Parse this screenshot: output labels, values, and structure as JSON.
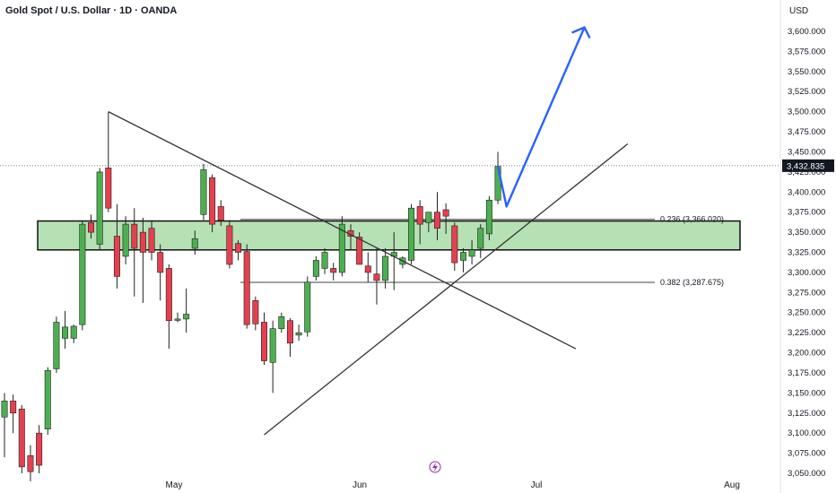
{
  "header": {
    "title": "Gold Spot / U.S. Dollar · 1D · OANDA",
    "currency": "USD"
  },
  "colors": {
    "up": "#4caf50",
    "down": "#e5404f",
    "zone_fill": "#a8dca8",
    "arrow": "#2962ff",
    "line": "#333333",
    "axis_text": "#131722",
    "price_badge_bg": "#131722"
  },
  "chart_data": {
    "type": "candlestick",
    "y_axis": {
      "ticks": [
        "3,050.000",
        "3,075.000",
        "3,100.000",
        "3,125.000",
        "3,150.000",
        "3,175.000",
        "3,200.000",
        "3,225.000",
        "3,250.000",
        "3,275.000",
        "3,300.000",
        "3,325.000",
        "3,350.000",
        "3,375.000",
        "3,400.000",
        "3,425.000",
        "3,450.000",
        "3,475.000",
        "3,500.000",
        "3,525.000",
        "3,550.000",
        "3,575.000",
        "3,600.000"
      ],
      "min": 3050,
      "max": 3600
    },
    "x_axis": {
      "labels": [
        "May",
        "Jun",
        "Jul",
        "Aug"
      ]
    },
    "current_price": {
      "value": 3432.835,
      "label": "3,432.835"
    },
    "candles": [
      {
        "o": 3120,
        "h": 3150,
        "l": 3070,
        "c": 3140
      },
      {
        "o": 3140,
        "h": 3148,
        "l": 3100,
        "c": 3125
      },
      {
        "o": 3130,
        "h": 3135,
        "l": 3050,
        "c": 3058
      },
      {
        "o": 3072,
        "h": 3085,
        "l": 3040,
        "c": 3052
      },
      {
        "o": 3100,
        "h": 3110,
        "l": 3050,
        "c": 3060
      },
      {
        "o": 3105,
        "h": 3182,
        "l": 3098,
        "c": 3178
      },
      {
        "o": 3180,
        "h": 3245,
        "l": 3175,
        "c": 3238
      },
      {
        "o": 3218,
        "h": 3252,
        "l": 3205,
        "c": 3232
      },
      {
        "o": 3218,
        "h": 3235,
        "l": 3212,
        "c": 3233
      },
      {
        "o": 3235,
        "h": 3365,
        "l": 3228,
        "c": 3360
      },
      {
        "o": 3362,
        "h": 3372,
        "l": 3342,
        "c": 3350
      },
      {
        "o": 3335,
        "h": 3430,
        "l": 3328,
        "c": 3425
      },
      {
        "o": 3430,
        "h": 3500,
        "l": 3375,
        "c": 3380
      },
      {
        "o": 3345,
        "h": 3385,
        "l": 3280,
        "c": 3295
      },
      {
        "o": 3320,
        "h": 3370,
        "l": 3310,
        "c": 3360
      },
      {
        "o": 3360,
        "h": 3380,
        "l": 3270,
        "c": 3330
      },
      {
        "o": 3350,
        "h": 3368,
        "l": 3262,
        "c": 3325
      },
      {
        "o": 3355,
        "h": 3365,
        "l": 3315,
        "c": 3325
      },
      {
        "o": 3325,
        "h": 3335,
        "l": 3265,
        "c": 3300
      },
      {
        "o": 3305,
        "h": 3310,
        "l": 3205,
        "c": 3240
      },
      {
        "o": 3242,
        "h": 3250,
        "l": 3238,
        "c": 3242
      },
      {
        "o": 3242,
        "h": 3280,
        "l": 3225,
        "c": 3248
      },
      {
        "o": 3330,
        "h": 3352,
        "l": 3322,
        "c": 3342
      },
      {
        "o": 3372,
        "h": 3435,
        "l": 3365,
        "c": 3428
      },
      {
        "o": 3418,
        "h": 3422,
        "l": 3350,
        "c": 3360
      },
      {
        "o": 3382,
        "h": 3390,
        "l": 3358,
        "c": 3365
      },
      {
        "o": 3358,
        "h": 3365,
        "l": 3305,
        "c": 3310
      },
      {
        "o": 3336,
        "h": 3340,
        "l": 3315,
        "c": 3325
      },
      {
        "o": 3326,
        "h": 3335,
        "l": 3230,
        "c": 3235
      },
      {
        "o": 3265,
        "h": 3270,
        "l": 3228,
        "c": 3236
      },
      {
        "o": 3238,
        "h": 3250,
        "l": 3185,
        "c": 3190
      },
      {
        "o": 3188,
        "h": 3240,
        "l": 3150,
        "c": 3230
      },
      {
        "o": 3230,
        "h": 3250,
        "l": 3225,
        "c": 3245
      },
      {
        "o": 3240,
        "h": 3243,
        "l": 3195,
        "c": 3212
      },
      {
        "o": 3222,
        "h": 3235,
        "l": 3215,
        "c": 3225
      },
      {
        "o": 3226,
        "h": 3295,
        "l": 3220,
        "c": 3288
      },
      {
        "o": 3295,
        "h": 3320,
        "l": 3290,
        "c": 3315
      },
      {
        "o": 3305,
        "h": 3330,
        "l": 3298,
        "c": 3325
      },
      {
        "o": 3305,
        "h": 3312,
        "l": 3290,
        "c": 3300
      },
      {
        "o": 3300,
        "h": 3370,
        "l": 3295,
        "c": 3360
      },
      {
        "o": 3352,
        "h": 3360,
        "l": 3328,
        "c": 3345
      },
      {
        "o": 3344,
        "h": 3350,
        "l": 3310,
        "c": 3310
      },
      {
        "o": 3308,
        "h": 3325,
        "l": 3288,
        "c": 3300
      },
      {
        "o": 3298,
        "h": 3330,
        "l": 3260,
        "c": 3290
      },
      {
        "o": 3290,
        "h": 3330,
        "l": 3280,
        "c": 3320
      },
      {
        "o": 3320,
        "h": 3350,
        "l": 3278,
        "c": 3325
      },
      {
        "o": 3310,
        "h": 3320,
        "l": 3305,
        "c": 3318
      },
      {
        "o": 3315,
        "h": 3385,
        "l": 3310,
        "c": 3380
      },
      {
        "o": 3382,
        "h": 3390,
        "l": 3335,
        "c": 3360
      },
      {
        "o": 3362,
        "h": 3370,
        "l": 3350,
        "c": 3375
      },
      {
        "o": 3375,
        "h": 3400,
        "l": 3340,
        "c": 3355
      },
      {
        "o": 3378,
        "h": 3386,
        "l": 3348,
        "c": 3370
      },
      {
        "o": 3358,
        "h": 3362,
        "l": 3302,
        "c": 3312
      },
      {
        "o": 3315,
        "h": 3330,
        "l": 3300,
        "c": 3325
      },
      {
        "o": 3320,
        "h": 3340,
        "l": 3310,
        "c": 3328
      },
      {
        "o": 3330,
        "h": 3360,
        "l": 3318,
        "c": 3355
      },
      {
        "o": 3348,
        "h": 3395,
        "l": 3340,
        "c": 3390
      },
      {
        "o": 3390,
        "h": 3450,
        "l": 3385,
        "c": 3432
      }
    ],
    "demand_zone": {
      "low": 3328,
      "high": 3364
    },
    "fibonacci": [
      {
        "label": "0.236 (3,366.020)",
        "value": 3366.02
      },
      {
        "label": "0.382 (3,287.675)",
        "value": 3287.675
      }
    ],
    "trendlines": [
      {
        "name": "descending",
        "from": {
          "i": 12,
          "p": 3500
        },
        "to": {
          "i": 66,
          "p": 3205
        }
      },
      {
        "name": "ascending",
        "from": {
          "i": 30,
          "p": 3098
        },
        "to": {
          "i": 72,
          "p": 3460
        }
      }
    ],
    "projection": {
      "from": {
        "i": 58,
        "p": 3382
      },
      "to": {
        "i": 67,
        "p": 3605
      }
    },
    "grid": false,
    "legend": "none"
  }
}
